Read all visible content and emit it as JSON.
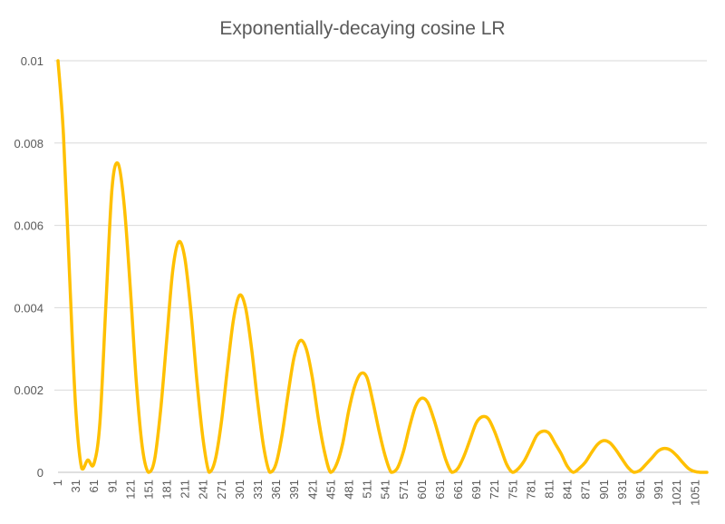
{
  "chart_data": {
    "type": "line",
    "title": "Exponentially-decaying cosine LR",
    "xlabel": "",
    "ylabel": "",
    "x_start": 1,
    "x_end": 1070,
    "xlim": [
      1,
      1070
    ],
    "ylim": [
      0,
      0.01
    ],
    "x_ticks": [
      1,
      31,
      61,
      91,
      121,
      151,
      181,
      211,
      241,
      271,
      301,
      331,
      361,
      391,
      421,
      451,
      481,
      511,
      541,
      571,
      601,
      631,
      661,
      691,
      721,
      751,
      781,
      811,
      841,
      871,
      901,
      931,
      961,
      991,
      1021,
      1051
    ],
    "y_ticks": [
      0,
      0.002,
      0.004,
      0.006,
      0.008,
      0.01
    ],
    "y_tick_labels": [
      "0",
      "0.002",
      "0.004",
      "0.006",
      "0.008",
      "0.01"
    ],
    "grid": true,
    "legend": "none",
    "series": [
      {
        "color": "#ffc000",
        "points": [
          [
            1,
            0.01
          ],
          [
            10,
            0.0082
          ],
          [
            20,
            0.0048
          ],
          [
            30,
            0.0016
          ],
          [
            40,
            0.0001
          ],
          [
            50,
            0.0003
          ],
          [
            60,
            0.0002
          ],
          [
            70,
            0.0012
          ],
          [
            80,
            0.0041
          ],
          [
            90,
            0.0069
          ],
          [
            100,
            0.0075
          ],
          [
            110,
            0.0065
          ],
          [
            120,
            0.0045
          ],
          [
            130,
            0.0022
          ],
          [
            140,
            0.0006
          ],
          [
            150,
            0.0
          ],
          [
            160,
            0.0003
          ],
          [
            170,
            0.0015
          ],
          [
            180,
            0.0032
          ],
          [
            190,
            0.0049
          ],
          [
            200,
            0.0056
          ],
          [
            210,
            0.0052
          ],
          [
            220,
            0.0039
          ],
          [
            230,
            0.0022
          ],
          [
            240,
            0.0008
          ],
          [
            250,
            0.0
          ],
          [
            260,
            0.0003
          ],
          [
            270,
            0.0012
          ],
          [
            280,
            0.0025
          ],
          [
            290,
            0.0037
          ],
          [
            300,
            0.0043
          ],
          [
            310,
            0.004
          ],
          [
            320,
            0.003
          ],
          [
            330,
            0.0017
          ],
          [
            340,
            0.0006
          ],
          [
            350,
            0.0
          ],
          [
            360,
            0.0002
          ],
          [
            370,
            0.0009
          ],
          [
            380,
            0.0019
          ],
          [
            390,
            0.0028
          ],
          [
            400,
            0.0032
          ],
          [
            410,
            0.003
          ],
          [
            420,
            0.0023
          ],
          [
            430,
            0.0013
          ],
          [
            440,
            0.0005
          ],
          [
            450,
            0.0
          ],
          [
            460,
            0.0002
          ],
          [
            470,
            0.0007
          ],
          [
            480,
            0.0015
          ],
          [
            490,
            0.0021
          ],
          [
            500,
            0.0024
          ],
          [
            510,
            0.0023
          ],
          [
            520,
            0.0017
          ],
          [
            530,
            0.001
          ],
          [
            540,
            0.0004
          ],
          [
            550,
            0.0
          ],
          [
            560,
            0.0001
          ],
          [
            570,
            0.0005
          ],
          [
            580,
            0.0011
          ],
          [
            590,
            0.0016
          ],
          [
            600,
            0.0018
          ],
          [
            610,
            0.0017
          ],
          [
            620,
            0.0013
          ],
          [
            630,
            0.0008
          ],
          [
            640,
            0.0003
          ],
          [
            650,
            0.0
          ],
          [
            660,
            0.0001
          ],
          [
            670,
            0.0004
          ],
          [
            680,
            0.0008
          ],
          [
            690,
            0.0012
          ],
          [
            700,
            0.00135
          ],
          [
            710,
            0.0013
          ],
          [
            720,
            0.001
          ],
          [
            730,
            0.0006
          ],
          [
            740,
            0.0002
          ],
          [
            750,
            0.0
          ],
          [
            760,
            0.0001
          ],
          [
            770,
            0.0003
          ],
          [
            780,
            0.0006
          ],
          [
            790,
            0.0009
          ],
          [
            800,
            0.001
          ],
          [
            810,
            0.00095
          ],
          [
            820,
            0.0007
          ],
          [
            830,
            0.00045
          ],
          [
            840,
            0.00015
          ],
          [
            850,
            0.0
          ],
          [
            860,
            0.0001
          ],
          [
            870,
            0.00025
          ],
          [
            880,
            0.00048
          ],
          [
            890,
            0.00068
          ],
          [
            900,
            0.00077
          ],
          [
            910,
            0.00072
          ],
          [
            920,
            0.00055
          ],
          [
            930,
            0.00033
          ],
          [
            940,
            0.00012
          ],
          [
            950,
            0.0
          ],
          [
            960,
            5e-05
          ],
          [
            970,
            0.0002
          ],
          [
            980,
            0.00036
          ],
          [
            990,
            0.00052
          ],
          [
            1000,
            0.00058
          ],
          [
            1010,
            0.00054
          ],
          [
            1020,
            0.00041
          ],
          [
            1030,
            0.00024
          ],
          [
            1040,
            9e-05
          ],
          [
            1050,
            2e-05
          ],
          [
            1060,
            0.0
          ],
          [
            1070,
            0.0
          ]
        ]
      }
    ]
  }
}
